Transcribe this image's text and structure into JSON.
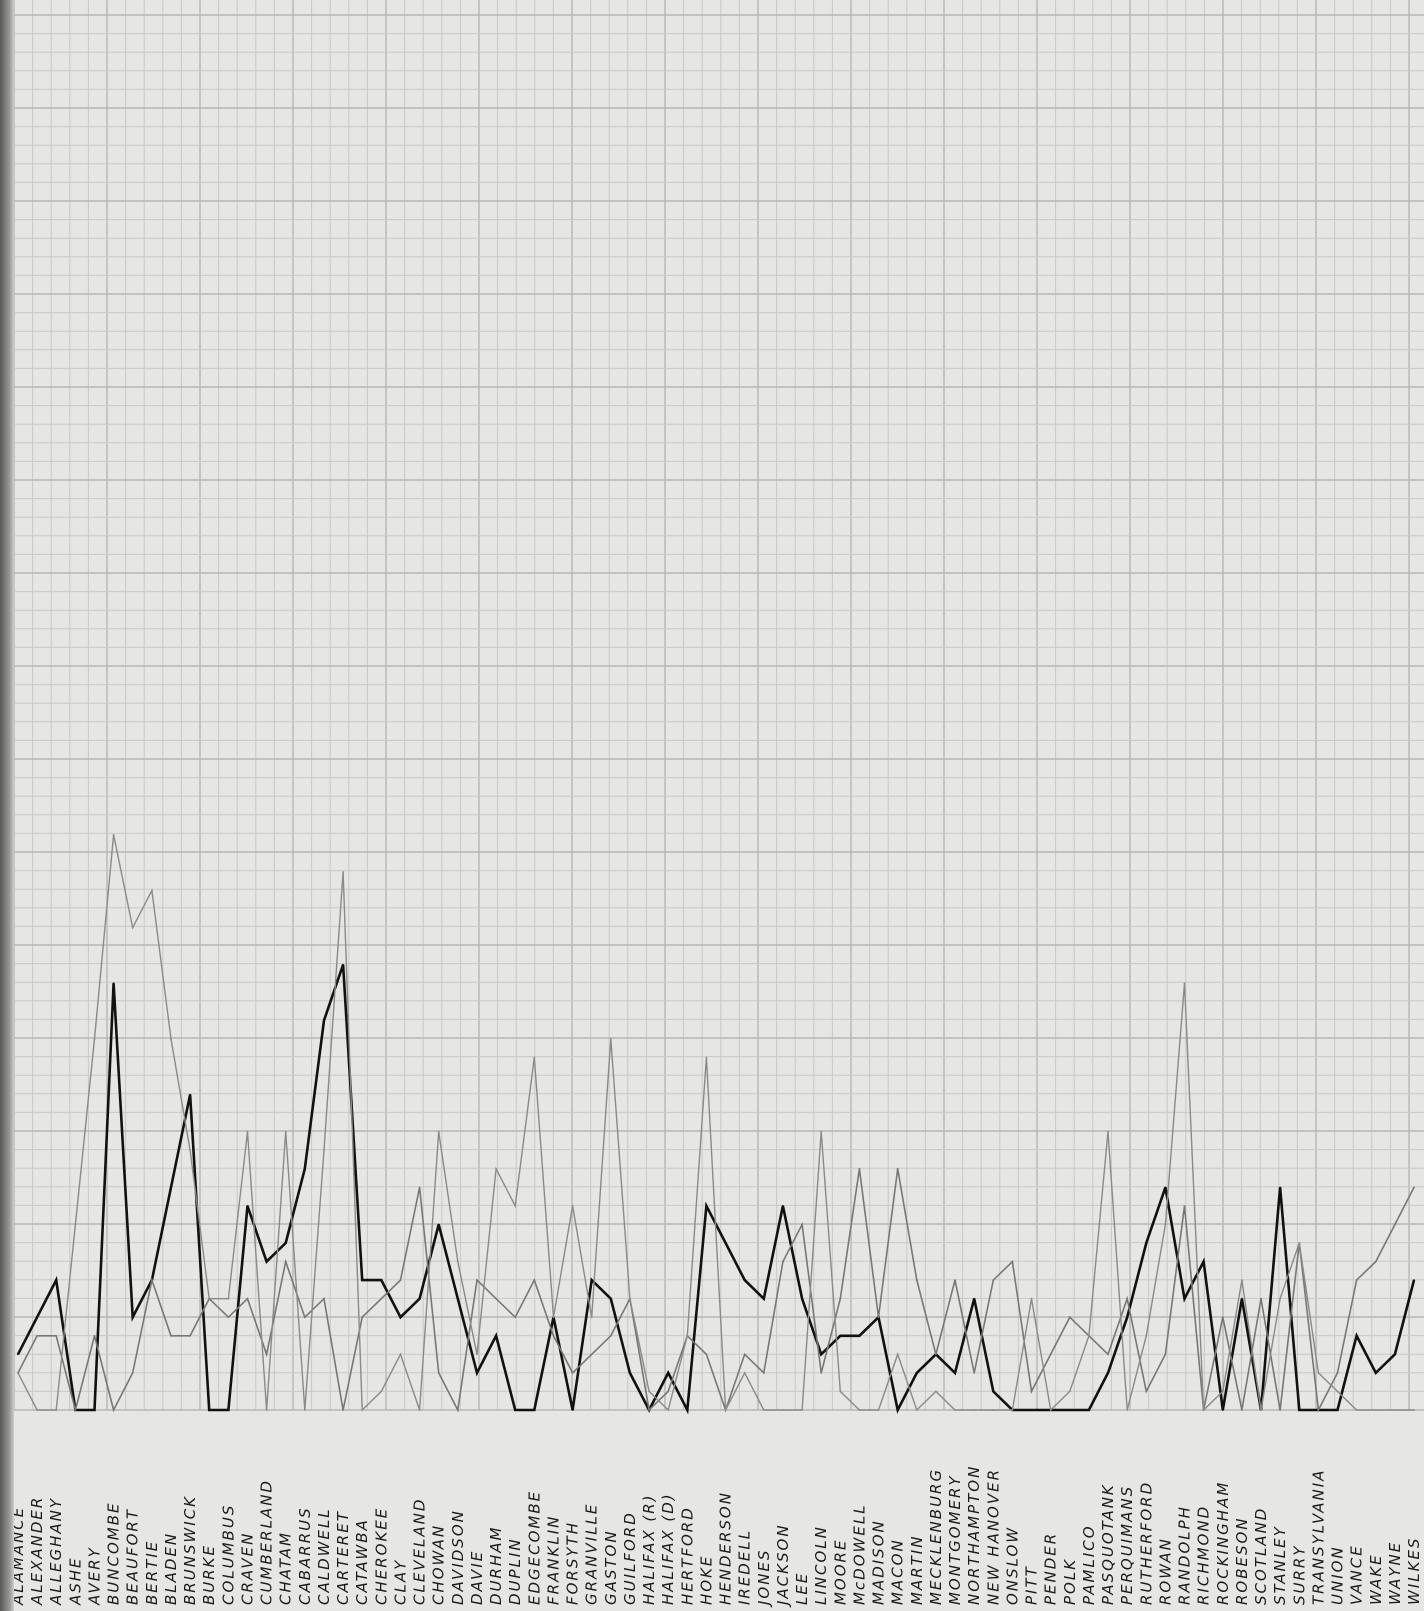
{
  "chart_data": {
    "type": "line",
    "title": "",
    "xlabel": "",
    "ylabel": "",
    "grid": true,
    "legend": "none",
    "categories": [
      "ALAMANCE",
      "ALEXANDER",
      "ALLEGHANY",
      "ASHE",
      "AVERY",
      "BUNCOMBE",
      "BEAUFORT",
      "BERTIE",
      "BLADEN",
      "BRUNSWICK",
      "BURKE",
      "COLUMBUS",
      "CRAVEN",
      "CUMBERLAND",
      "CHATAM",
      "CABARRUS",
      "CALDWELL",
      "CARTERET",
      "CATAWBA",
      "CHEROKEE",
      "CLAY",
      "CLEVELAND",
      "CHOWAN",
      "DAVIDSON",
      "DAVIE",
      "DURHAM",
      "DUPLIN",
      "EDGECOMBE",
      "FRANKLIN",
      "FORSYTH",
      "GRANVILLE",
      "GASTON",
      "GUILFORD",
      "HALIFAX (R)",
      "HALIFAX (D)",
      "HERTFORD",
      "HOKE",
      "HENDERSON",
      "IREDELL",
      "JONES",
      "JACKSON",
      "LEE",
      "LINCOLN",
      "MOORE",
      "McDOWELL",
      "MADISON",
      "MACON",
      "MARTIN",
      "MECKLENBURG",
      "MONTGOMERY",
      "NORTHAMPTON",
      "NEW HANOVER",
      "ONSLOW",
      "PITT",
      "PENDER",
      "POLK",
      "PAMLICO",
      "PASQUOTANK",
      "PERQUIMANS",
      "RUTHERFORD",
      "ROWAN",
      "RANDOLPH",
      "RICHMOND",
      "ROCKINGHAM",
      "ROBESON",
      "SCOTLAND",
      "STANLEY",
      "SURRY",
      "TRANSYLVANIA",
      "UNION",
      "VANCE",
      "WAKE",
      "WAYNE",
      "WILKES"
    ],
    "ylim": [
      0,
      76
    ],
    "series": [
      {
        "values": [
          3,
          5,
          7,
          0,
          0,
          23,
          5,
          7,
          12,
          17,
          0,
          0,
          11,
          8,
          9,
          13,
          21,
          24,
          7,
          7,
          5,
          6,
          10,
          6,
          2,
          4,
          0,
          0,
          5,
          0,
          7,
          6,
          2,
          0,
          2,
          0,
          11,
          9,
          7,
          6,
          11,
          6,
          3,
          4,
          4,
          5,
          0,
          2,
          3,
          2,
          6,
          1,
          0,
          0,
          0,
          0,
          0,
          2,
          5,
          9,
          12,
          6,
          8,
          0,
          6,
          0,
          12,
          0,
          0,
          0,
          4,
          2,
          3,
          7
        ]
      },
      {
        "values": [
          2,
          4,
          4,
          0,
          4,
          0,
          2,
          7,
          4,
          4,
          6,
          5,
          6,
          3,
          8,
          5,
          6,
          0,
          5,
          6,
          7,
          12,
          2,
          0,
          7,
          6,
          5,
          7,
          4,
          2,
          3,
          4,
          6,
          0,
          1,
          4,
          3,
          0,
          3,
          2,
          8,
          10,
          2,
          6,
          13,
          5,
          13,
          7,
          3,
          7,
          2,
          7,
          8,
          1,
          3,
          5,
          4,
          3,
          6,
          1,
          3,
          11,
          0,
          5,
          0,
          6,
          0,
          9,
          0,
          2,
          7,
          8,
          10,
          12
        ]
      },
      {
        "values": [
          2,
          0,
          0,
          10,
          20,
          31,
          26,
          28,
          20,
          14,
          6,
          6,
          15,
          0,
          15,
          0,
          14,
          29,
          0,
          1,
          3,
          0,
          15,
          8,
          3,
          13,
          11,
          19,
          5,
          11,
          5,
          20,
          6,
          1,
          0,
          4,
          19,
          0,
          2,
          0,
          0,
          0,
          15,
          1,
          0,
          0,
          3,
          0,
          1,
          0,
          0,
          0,
          0,
          6,
          0,
          1,
          4,
          15,
          0,
          4,
          10,
          23,
          0,
          1,
          7,
          0,
          6,
          9,
          2,
          1,
          0,
          0,
          0,
          0
        ]
      }
    ]
  }
}
